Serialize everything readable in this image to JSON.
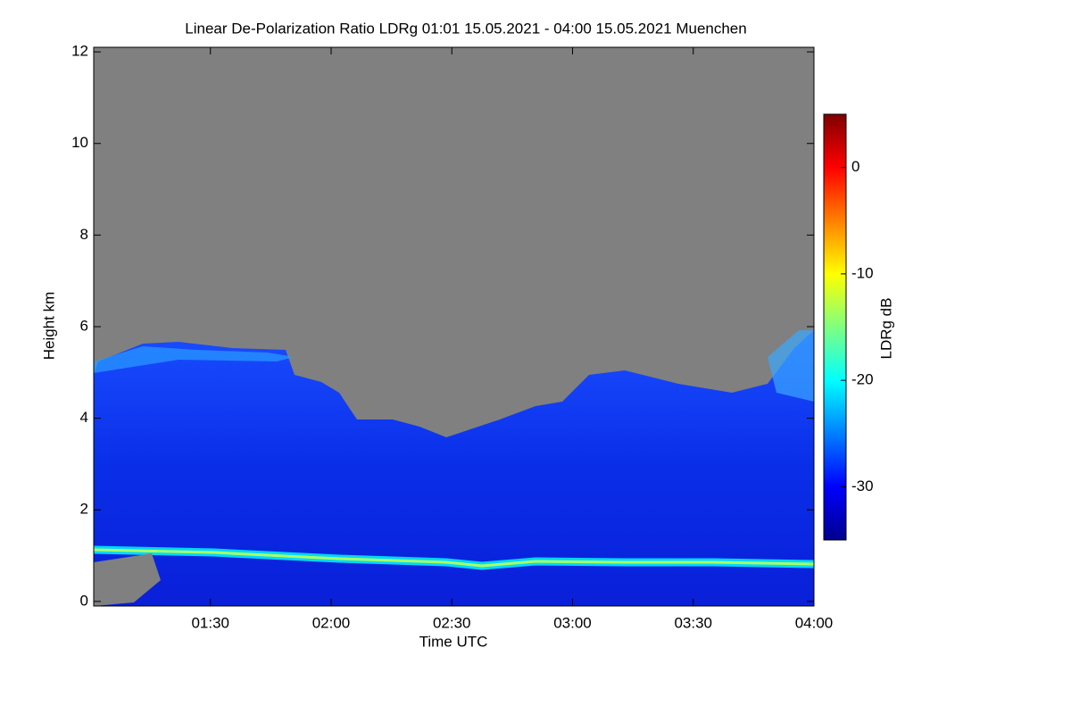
{
  "chart_data": {
    "type": "heatmap",
    "title": "Linear De-Polarization Ratio LDRg   01:01 15.05.2021 - 04:00 15.05.2021 Muenchen",
    "xlabel": "Time UTC",
    "ylabel": "Height km",
    "colorbar_label": "LDRg dB",
    "xlim": [
      61,
      240
    ],
    "xticks": [
      {
        "value": 90,
        "label": "01:30"
      },
      {
        "value": 120,
        "label": "02:00"
      },
      {
        "value": 150,
        "label": "02:30"
      },
      {
        "value": 180,
        "label": "03:00"
      },
      {
        "value": 210,
        "label": "03:30"
      },
      {
        "value": 240,
        "label": "04:00"
      }
    ],
    "ylim": [
      -0.1,
      12.1
    ],
    "yticks": [
      0,
      2,
      4,
      6,
      8,
      10,
      12
    ],
    "zlim": [
      -35,
      5
    ],
    "zticks": [
      0,
      -10,
      -20,
      -30
    ],
    "colormap": [
      "#00008f",
      "#0000ff",
      "#0080ff",
      "#00ffff",
      "#80ff80",
      "#ffff00",
      "#ff8000",
      "#ff0000",
      "#800000"
    ],
    "missing_color": "#808080"
  }
}
